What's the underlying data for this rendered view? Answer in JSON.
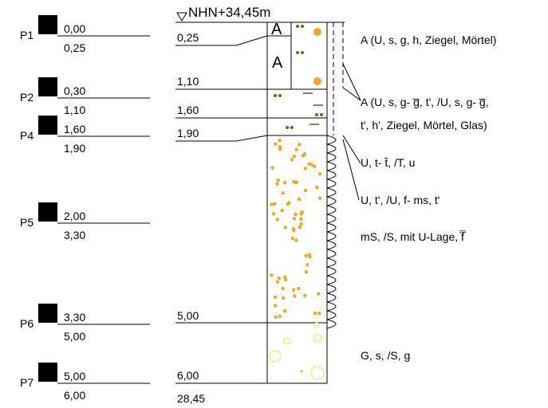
{
  "header": {
    "title": "NHN+34,45m"
  },
  "samples": [
    {
      "label": "P1",
      "top": "0,00",
      "bottom": "0,25"
    },
    {
      "label": "P2",
      "top": "0,30",
      "bottom": "1,10"
    },
    {
      "label": "P4",
      "top": "1,60",
      "bottom": "1,90"
    },
    {
      "label": "P5",
      "top": "2,00",
      "bottom": "3,30"
    },
    {
      "label": "P6",
      "top": "3,30",
      "bottom": "5,00"
    },
    {
      "label": "P7",
      "top": "5,00",
      "bottom": "6,00"
    }
  ],
  "depths": [
    "0,25",
    "1,10",
    "1,60",
    "1,90",
    "5,00",
    "6,00",
    "28,45"
  ],
  "descriptions": [
    "A (U, s, g, h, Ziegel, Mörtel)",
    "A (U, s, g- g̅, t', /U, s, g- g̅,",
    "t', h', Ziegel, Mörtel, Glas)",
    "U, t- t̄, /T, u",
    "U, t', /U, f- ms, t'",
    "mS, /S, mit U-Lage, f̿",
    "G, s, /S, g"
  ]
}
